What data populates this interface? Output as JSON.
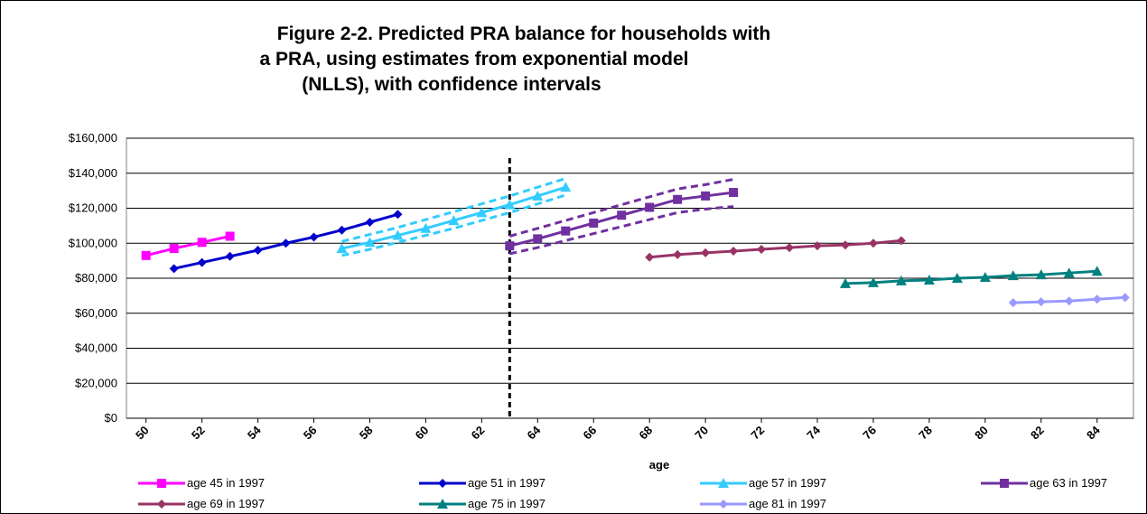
{
  "chart_data": {
    "type": "line",
    "title": [
      "Figure 2-2.  Predicted PRA balance for households with",
      "a PRA, using estimates from exponential model",
      "(NLLS), with confidence intervals"
    ],
    "x_label": "age",
    "xlim": [
      49.3,
      85.3
    ],
    "xticks": [
      50,
      52,
      54,
      56,
      58,
      60,
      62,
      64,
      66,
      68,
      70,
      72,
      74,
      76,
      78,
      80,
      82,
      84
    ],
    "ylim": [
      0,
      160000
    ],
    "yticks": [
      {
        "value": 0,
        "label": "$0"
      },
      {
        "value": 20000,
        "label": "$20,000"
      },
      {
        "value": 40000,
        "label": "$40,000"
      },
      {
        "value": 60000,
        "label": "$60,000"
      },
      {
        "value": 80000,
        "label": "$80,000"
      },
      {
        "value": 100000,
        "label": "$100,000"
      },
      {
        "value": 120000,
        "label": "$120,000"
      },
      {
        "value": 140000,
        "label": "$140,000"
      },
      {
        "value": 160000,
        "label": "$160,000"
      }
    ],
    "grid": true,
    "reference_line_x": 63,
    "series": [
      {
        "name": "age 45 in 1997",
        "color": "#ff00ff",
        "marker": "square",
        "x": [
          50,
          51,
          52,
          53
        ],
        "values": [
          93000,
          97000,
          100500,
          104000
        ]
      },
      {
        "name": "age 51 in 1997",
        "color": "#0000cc",
        "marker": "diamond",
        "x": [
          51,
          52,
          53,
          54,
          55,
          56,
          57,
          58,
          59
        ],
        "values": [
          85500,
          89000,
          92500,
          96000,
          100000,
          103500,
          107500,
          112000,
          116500
        ]
      },
      {
        "name": "age 57 in 1997",
        "color": "#33ccff",
        "marker": "triangle",
        "x": [
          57,
          58,
          59,
          60,
          61,
          62,
          63,
          64,
          65
        ],
        "values": [
          97000,
          100500,
          104500,
          108500,
          113000,
          117500,
          122000,
          127000,
          132000
        ]
      },
      {
        "name": "age 63 in 1997",
        "color": "#7030a0",
        "marker": "square",
        "x": [
          63,
          64,
          65,
          66,
          67,
          68,
          69,
          70,
          71
        ],
        "values": [
          98500,
          102500,
          107000,
          111500,
          116000,
          120500,
          125000,
          127000,
          129000
        ]
      },
      {
        "name": "age 69 in 1997",
        "color": "#993366",
        "marker": "diamond",
        "x": [
          68,
          69,
          70,
          71,
          72,
          73,
          74,
          75,
          76,
          77
        ],
        "values": [
          92000,
          93500,
          94500,
          95500,
          96500,
          97500,
          98500,
          99000,
          100000,
          101500
        ]
      },
      {
        "name": "age 75 in 1997",
        "color": "#008080",
        "marker": "triangle",
        "x": [
          75,
          76,
          77,
          78,
          79,
          80,
          81,
          82,
          83,
          84
        ],
        "values": [
          77000,
          77500,
          78500,
          79000,
          80000,
          80500,
          81500,
          82000,
          83000,
          84000
        ]
      },
      {
        "name": "age 81 in 1997",
        "color": "#9999ff",
        "marker": "diamond",
        "x": [
          81,
          82,
          83,
          84,
          85
        ],
        "values": [
          66000,
          66500,
          67000,
          68000,
          69000
        ]
      },
      {
        "color": "#33ccff",
        "dash": true,
        "x": [
          57,
          58,
          59,
          60,
          61,
          62,
          63,
          64,
          65
        ],
        "values": [
          101000,
          105000,
          109000,
          113500,
          118000,
          122500,
          127000,
          132000,
          137000
        ]
      },
      {
        "color": "#33ccff",
        "dash": true,
        "x": [
          57,
          58,
          59,
          60,
          61,
          62,
          63,
          64,
          65
        ],
        "values": [
          93000,
          96500,
          100500,
          104500,
          108500,
          113000,
          117500,
          122500,
          127500
        ]
      },
      {
        "color": "#7030a0",
        "dash": true,
        "x": [
          63,
          64,
          65,
          66,
          67,
          68,
          69,
          70,
          71
        ],
        "values": [
          104000,
          108500,
          113000,
          117500,
          122000,
          126500,
          131000,
          133500,
          136500
        ]
      },
      {
        "color": "#7030a0",
        "dash": true,
        "x": [
          63,
          64,
          65,
          66,
          67,
          68,
          69,
          70,
          71
        ],
        "values": [
          94000,
          97500,
          101500,
          105500,
          109500,
          113500,
          117500,
          119500,
          121000
        ]
      }
    ]
  }
}
